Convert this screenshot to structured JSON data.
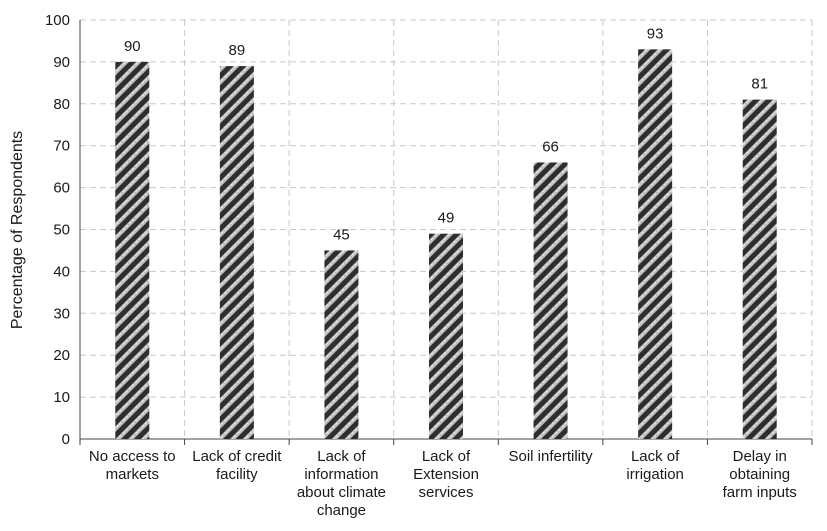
{
  "chart_data": {
    "type": "bar",
    "title": "",
    "xlabel": "",
    "ylabel": "Percentage of Respondents",
    "ylim": [
      0,
      100
    ],
    "yticks": [
      0,
      10,
      20,
      30,
      40,
      50,
      60,
      70,
      80,
      90,
      100
    ],
    "grid": true,
    "categories": [
      [
        "No access to",
        "markets"
      ],
      [
        "Lack of credit",
        "facility"
      ],
      [
        "Lack of",
        "information",
        "about climate",
        "change"
      ],
      [
        "Lack of",
        "Extension",
        "services"
      ],
      [
        "Soil infertility"
      ],
      [
        "Lack of",
        "irrigation"
      ],
      [
        "Delay in",
        "obtaining",
        "farm inputs"
      ]
    ],
    "values": [
      90,
      89,
      45,
      49,
      66,
      93,
      81
    ],
    "data_labels": [
      "90",
      "89",
      "45",
      "49",
      "66",
      "93",
      "81"
    ],
    "bar_style": "diagonal-hatch",
    "colors": {
      "bar_dark": "#2e2e2e",
      "bar_light": "#bdbdbd",
      "grid": "#c8c8c8",
      "axis": "#444444"
    }
  }
}
